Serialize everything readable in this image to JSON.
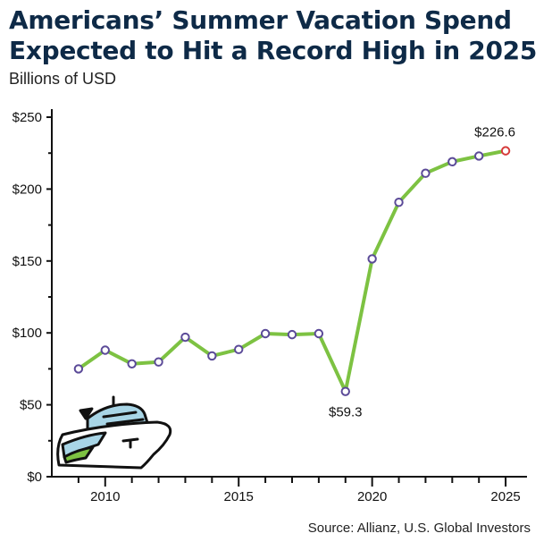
{
  "chart_data": {
    "type": "line",
    "title": "Americans’ Summer Vacation Spend Expected to Hit a Record High in 2025",
    "subtitle": "Billions of USD",
    "source": "Source: Allianz, U.S. Global Investors",
    "x": [
      2009,
      2010,
      2011,
      2012,
      2013,
      2014,
      2015,
      2016,
      2017,
      2018,
      2019,
      2020,
      2021,
      2022,
      2023,
      2024,
      2025
    ],
    "values": [
      75,
      88,
      78.5,
      79.8,
      97,
      84,
      88.5,
      99.5,
      98.8,
      99.5,
      59.3,
      151.5,
      190.8,
      211,
      219,
      223,
      226.6
    ],
    "xlim": [
      2008,
      2025.8
    ],
    "ylim": [
      0,
      250
    ],
    "x_ticks": [
      2010,
      2015,
      2020,
      2025
    ],
    "y_ticks": [
      0,
      50,
      100,
      150,
      200,
      250
    ],
    "x_tick_labels": [
      "2010",
      "2015",
      "2020",
      "2025"
    ],
    "y_tick_labels": [
      "$0",
      "$50",
      "$100",
      "$150",
      "$200",
      "$250"
    ],
    "annotations": [
      {
        "x": 2019,
        "y": 59.3,
        "text": "$59.3"
      },
      {
        "x": 2025,
        "y": 226.6,
        "text": "$226.6"
      }
    ],
    "line_color": "#7dc242",
    "marker_color": "#5b4a98",
    "highlight_color": "#d63a3a",
    "grid": false
  },
  "decoration": {
    "illustration": "cruise-ship-icon"
  }
}
